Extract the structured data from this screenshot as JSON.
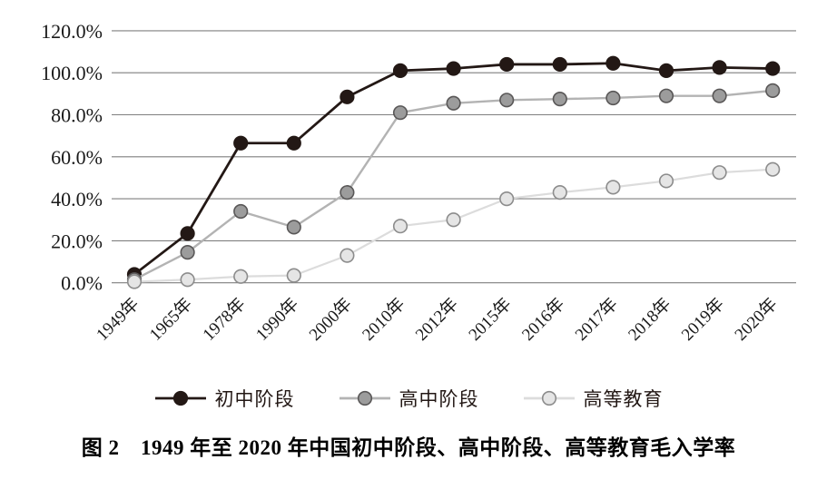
{
  "figure": {
    "caption": "图 2　1949 年至 2020 年中国初中阶段、高中阶段、高等教育毛入学率"
  },
  "chart_data": {
    "type": "line",
    "title": "",
    "xlabel": "",
    "ylabel": "",
    "categories": [
      "1949年",
      "1965年",
      "1978年",
      "1990年",
      "2000年",
      "2010年",
      "2012年",
      "2015年",
      "2016年",
      "2017年",
      "2018年",
      "2019年",
      "2020年"
    ],
    "series": [
      {
        "name": "初中阶段",
        "values": [
          4.0,
          23.5,
          66.5,
          66.5,
          88.5,
          101.0,
          102.0,
          104.0,
          104.0,
          104.5,
          101.0,
          102.5,
          102.0
        ],
        "line_color": "#231815",
        "marker_fill": "#231815",
        "marker_stroke": "#231815"
      },
      {
        "name": "高中阶段",
        "values": [
          1.5,
          14.5,
          34.0,
          26.5,
          43.0,
          81.0,
          85.5,
          87.0,
          87.5,
          88.0,
          89.0,
          89.0,
          91.5
        ],
        "line_color": "#b3b3b3",
        "marker_fill": "#9c9c9c",
        "marker_stroke": "#595757"
      },
      {
        "name": "高等教育",
        "values": [
          0.5,
          1.5,
          3.0,
          3.5,
          13.0,
          27.0,
          30.0,
          40.0,
          43.0,
          45.5,
          48.5,
          52.5,
          54.0
        ],
        "line_color": "#dcdcdc",
        "marker_fill": "#e5e5e5",
        "marker_stroke": "#8c8c8c"
      }
    ],
    "yticks": [
      "0.0%",
      "20.0%",
      "40.0%",
      "60.0%",
      "80.0%",
      "100.0%",
      "120.0%"
    ],
    "ytick_values": [
      0,
      20,
      40,
      60,
      80,
      100,
      120
    ],
    "ylim": [
      0,
      120
    ],
    "grid": true,
    "gridline_color": "#7f7f7f",
    "tick_label_color": "#1a1a1a",
    "legend_position": "bottom"
  }
}
